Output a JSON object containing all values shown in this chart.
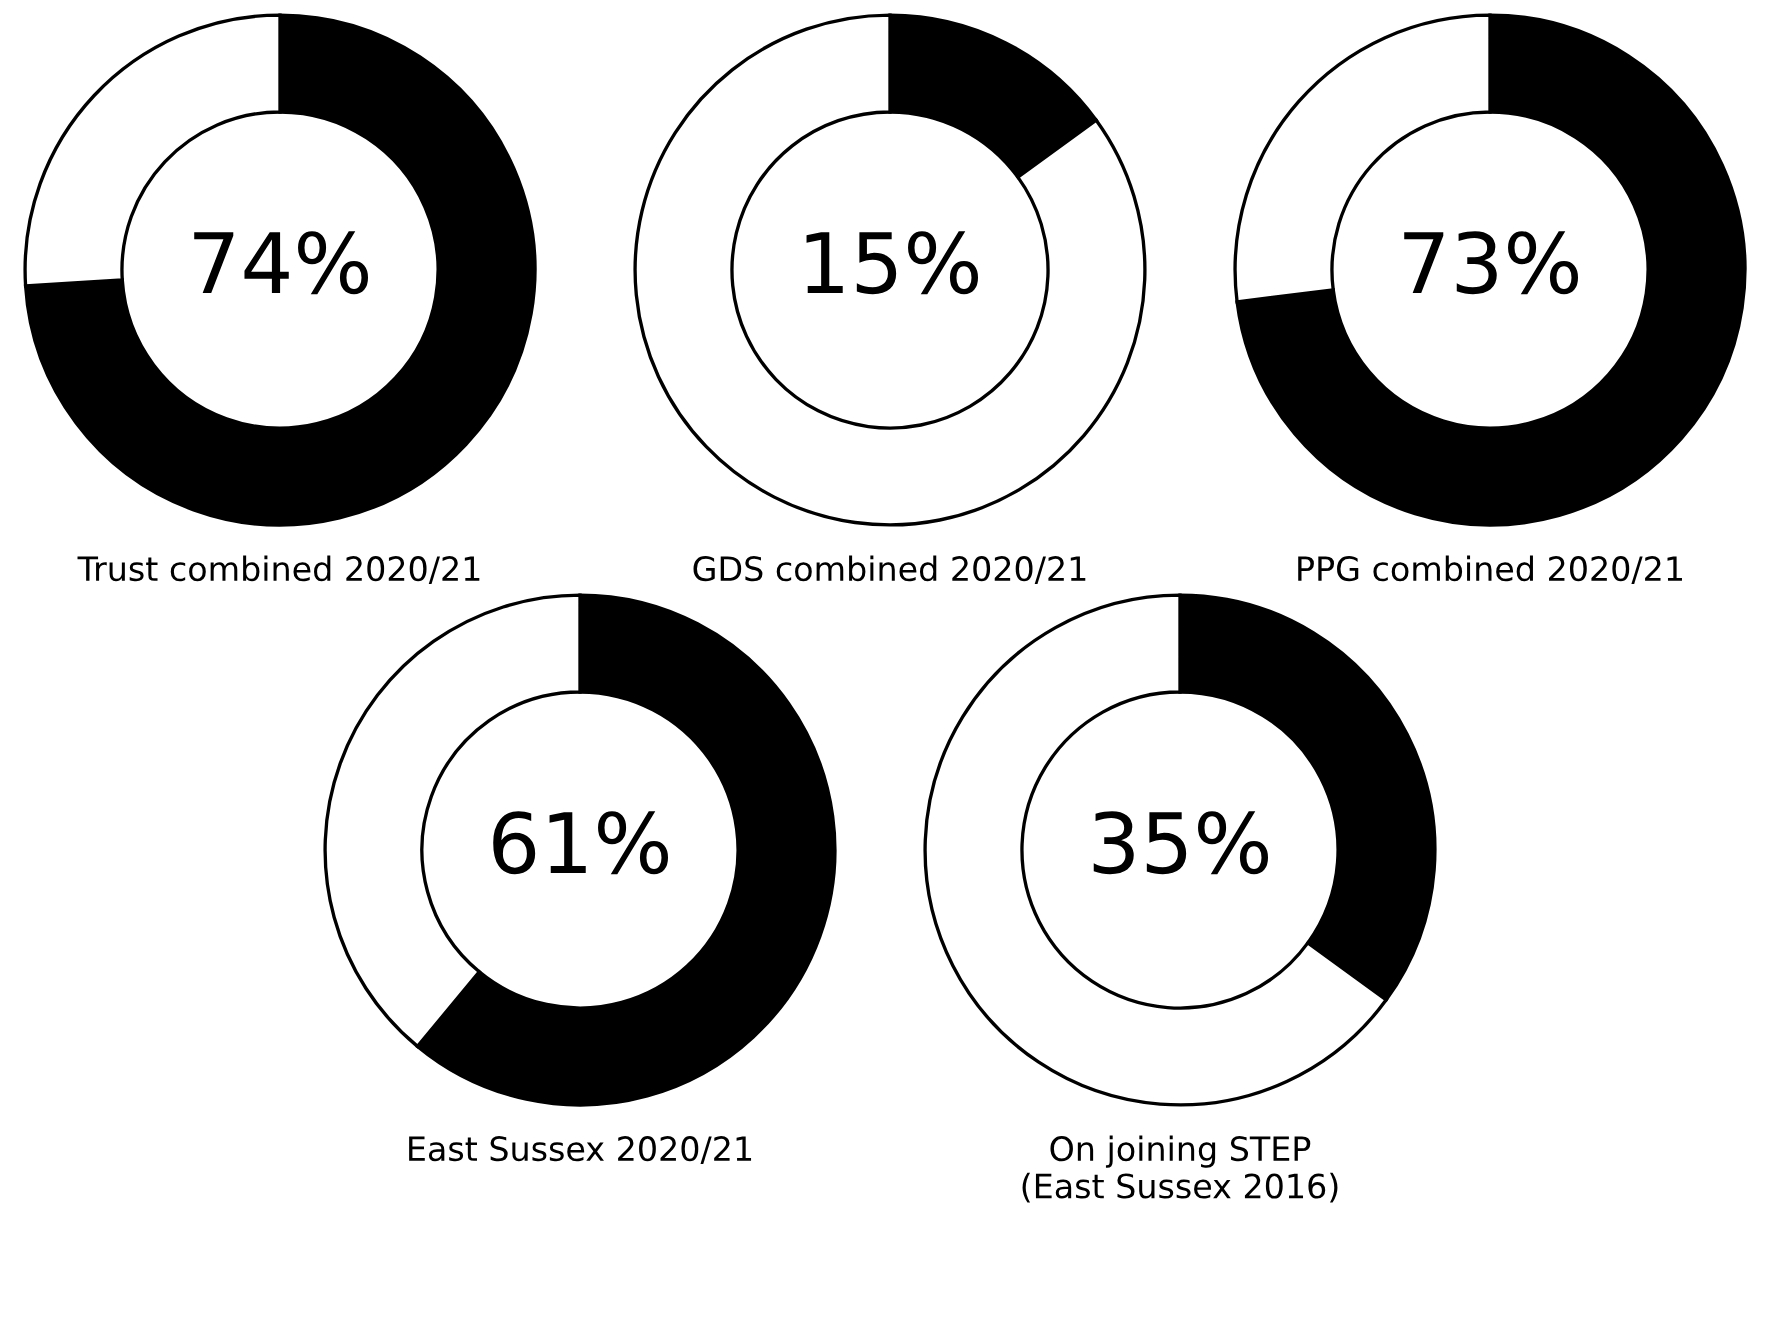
{
  "chart_data": [
    {
      "type": "donut",
      "title": "Trust combined 2020/21",
      "categories": [
        null,
        null
      ],
      "values": [
        74,
        26
      ],
      "colors": [
        "#000000",
        "#ffffff"
      ],
      "value_labels": [
        "74%",
        null
      ]
    },
    {
      "type": "donut",
      "title": "GDS combined 2020/21",
      "categories": [
        null,
        null
      ],
      "values": [
        15,
        85
      ],
      "colors": [
        "#000000",
        "#ffffff"
      ],
      "value_labels": [
        "15%",
        null
      ]
    },
    {
      "type": "donut",
      "title": "PPG combined 2020/21",
      "categories": [
        null,
        null
      ],
      "values": [
        73,
        27
      ],
      "colors": [
        "#000000",
        "#ffffff"
      ],
      "value_labels": [
        "73%",
        null
      ]
    },
    {
      "type": "donut",
      "title": "East Sussex 2020/21",
      "categories": [
        null,
        null
      ],
      "values": [
        61,
        39
      ],
      "colors": [
        "#000000",
        "#ffffff"
      ],
      "value_labels": [
        "61%",
        null
      ]
    },
    {
      "type": "donut",
      "title": "On joining STEP\n(East Sussex 2016)",
      "categories": [
        null,
        null
      ],
      "values": [
        35,
        65
      ],
      "colors": [
        "#000000",
        "#ffffff"
      ],
      "value_labels": [
        "35%",
        null
      ]
    }
  ]
}
